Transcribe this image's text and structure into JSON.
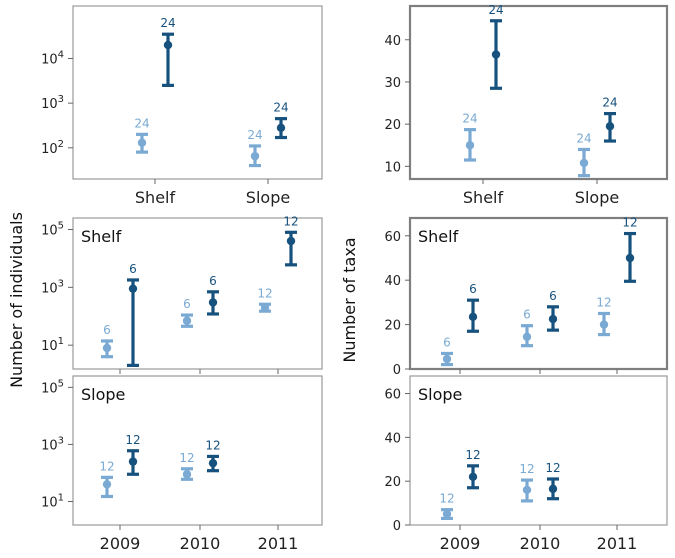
{
  "colors": {
    "light": "#7aaad3",
    "dark": "#17527e"
  },
  "y_labels": {
    "left": "Number of individuals",
    "right": "Number of taxa"
  },
  "chart_data": [
    {
      "id": "A",
      "type": "scatter",
      "panel_label": "",
      "ylabel": "",
      "yscale": "log",
      "ylim": [
        20,
        150000
      ],
      "yticks": [
        {
          "v": 100,
          "b": "10",
          "e": "2"
        },
        {
          "v": 1000,
          "b": "10",
          "e": "3"
        },
        {
          "v": 10000,
          "b": "10",
          "e": "4"
        }
      ],
      "categories": [
        "Shelf",
        "Slope"
      ],
      "points": [
        {
          "x": 0,
          "series": "light",
          "mean": 130,
          "low": 80,
          "high": 200,
          "n": "24"
        },
        {
          "x": 0,
          "series": "dark",
          "mean": 20000,
          "low": 2500,
          "high": 35000,
          "n": "24"
        },
        {
          "x": 1,
          "series": "light",
          "mean": 65,
          "low": 40,
          "high": 110,
          "n": "24"
        },
        {
          "x": 1,
          "series": "dark",
          "mean": 280,
          "low": 170,
          "high": 450,
          "n": "24"
        }
      ]
    },
    {
      "id": "B",
      "type": "scatter",
      "panel_label": "",
      "ylabel": "",
      "yscale": "linear",
      "ylim": [
        7,
        48
      ],
      "yticks": [
        {
          "v": 10,
          "t": "10"
        },
        {
          "v": 20,
          "t": "20"
        },
        {
          "v": 30,
          "t": "30"
        },
        {
          "v": 40,
          "t": "40"
        }
      ],
      "categories": [
        "Shelf",
        "Slope"
      ],
      "points": [
        {
          "x": 0,
          "series": "light",
          "mean": 15,
          "low": 11.5,
          "high": 18.7,
          "n": "24"
        },
        {
          "x": 0,
          "series": "dark",
          "mean": 36.5,
          "low": 28.5,
          "high": 44.5,
          "n": "24"
        },
        {
          "x": 1,
          "series": "light",
          "mean": 10.8,
          "low": 7.8,
          "high": 14,
          "n": "24"
        },
        {
          "x": 1,
          "series": "dark",
          "mean": 19.5,
          "low": 16,
          "high": 22.5,
          "n": "24"
        }
      ]
    },
    {
      "id": "C",
      "type": "scatter",
      "panel_label": "Shelf",
      "ylabel": "",
      "yscale": "log",
      "ylim": [
        1.5,
        250000
      ],
      "yticks": [
        {
          "v": 10,
          "b": "10",
          "e": "1"
        },
        {
          "v": 1000,
          "b": "10",
          "e": "3"
        },
        {
          "v": 100000,
          "b": "10",
          "e": "5"
        }
      ],
      "categories": [
        "2009",
        "2010",
        "2011"
      ],
      "points": [
        {
          "x": 0,
          "series": "light",
          "mean": 8,
          "low": 4,
          "high": 14,
          "n": "6"
        },
        {
          "x": 0,
          "series": "dark",
          "mean": 900,
          "low": 2,
          "high": 1800,
          "n": "6"
        },
        {
          "x": 1,
          "series": "light",
          "mean": 70,
          "low": 45,
          "high": 110,
          "n": "6"
        },
        {
          "x": 1,
          "series": "dark",
          "mean": 300,
          "low": 120,
          "high": 700,
          "n": "6"
        },
        {
          "x": 2,
          "series": "light",
          "mean": 200,
          "low": 150,
          "high": 260,
          "n": "12"
        },
        {
          "x": 2,
          "series": "dark",
          "mean": 40000,
          "low": 6000,
          "high": 80000,
          "n": "12"
        }
      ]
    },
    {
      "id": "D",
      "type": "scatter",
      "panel_label": "Shelf",
      "ylabel": "",
      "yscale": "linear",
      "ylim": [
        0,
        68
      ],
      "yticks": [
        {
          "v": 0,
          "t": "0"
        },
        {
          "v": 20,
          "t": "20"
        },
        {
          "v": 40,
          "t": "40"
        },
        {
          "v": 60,
          "t": "60"
        }
      ],
      "categories": [
        "2009",
        "2010",
        "2011"
      ],
      "points": [
        {
          "x": 0,
          "series": "light",
          "mean": 4.5,
          "low": 2,
          "high": 7,
          "n": "6"
        },
        {
          "x": 0,
          "series": "dark",
          "mean": 23.5,
          "low": 17,
          "high": 31,
          "n": "6"
        },
        {
          "x": 1,
          "series": "light",
          "mean": 14.5,
          "low": 10.5,
          "high": 19.5,
          "n": "6"
        },
        {
          "x": 1,
          "series": "dark",
          "mean": 22.5,
          "low": 17.5,
          "high": 28,
          "n": "6"
        },
        {
          "x": 2,
          "series": "light",
          "mean": 20,
          "low": 15.5,
          "high": 25,
          "n": "12"
        },
        {
          "x": 2,
          "series": "dark",
          "mean": 50,
          "low": 39.5,
          "high": 61,
          "n": "12"
        }
      ]
    },
    {
      "id": "E",
      "type": "scatter",
      "panel_label": "Slope",
      "ylabel": "",
      "yscale": "log",
      "ylim": [
        1.5,
        250000
      ],
      "yticks": [
        {
          "v": 10,
          "b": "10",
          "e": "1"
        },
        {
          "v": 1000,
          "b": "10",
          "e": "3"
        },
        {
          "v": 100000,
          "b": "10",
          "e": "5"
        }
      ],
      "categories": [
        "2009",
        "2010",
        "2011"
      ],
      "points": [
        {
          "x": 0,
          "series": "light",
          "mean": 40,
          "low": 15,
          "high": 70,
          "n": "12"
        },
        {
          "x": 0,
          "series": "dark",
          "mean": 250,
          "low": 90,
          "high": 600,
          "n": "12"
        },
        {
          "x": 1,
          "series": "light",
          "mean": 90,
          "low": 60,
          "high": 140,
          "n": "12"
        },
        {
          "x": 1,
          "series": "dark",
          "mean": 220,
          "low": 120,
          "high": 380,
          "n": "12"
        }
      ]
    },
    {
      "id": "F",
      "type": "scatter",
      "panel_label": "Slope",
      "ylabel": "",
      "yscale": "linear",
      "ylim": [
        0,
        68
      ],
      "yticks": [
        {
          "v": 0,
          "t": "0"
        },
        {
          "v": 20,
          "t": "20"
        },
        {
          "v": 40,
          "t": "40"
        },
        {
          "v": 60,
          "t": "60"
        }
      ],
      "categories": [
        "2009",
        "2010",
        "2011"
      ],
      "points": [
        {
          "x": 0,
          "series": "light",
          "mean": 5,
          "low": 3,
          "high": 7,
          "n": "12"
        },
        {
          "x": 0,
          "series": "dark",
          "mean": 22,
          "low": 17,
          "high": 27,
          "n": "12"
        },
        {
          "x": 1,
          "series": "light",
          "mean": 16,
          "low": 11,
          "high": 20.5,
          "n": "12"
        },
        {
          "x": 1,
          "series": "dark",
          "mean": 16.5,
          "low": 12,
          "high": 21,
          "n": "12"
        }
      ]
    }
  ]
}
